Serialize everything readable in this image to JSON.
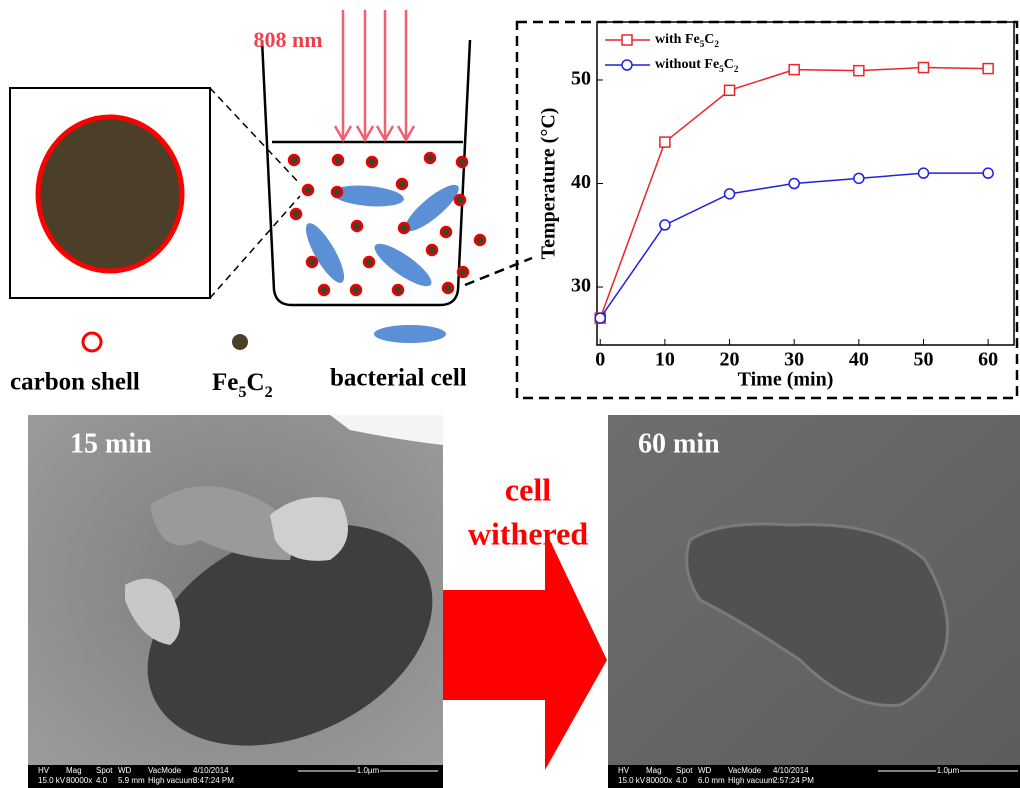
{
  "chart_data": {
    "type": "line",
    "xlabel": "Time (min)",
    "ylabel": "Temperature (°C)",
    "x": [
      0,
      10,
      20,
      30,
      40,
      50,
      60
    ],
    "series": [
      {
        "name": "with Fe5C2",
        "color": "#e8262a",
        "marker": "square",
        "values": [
          27,
          44,
          49,
          51,
          50.9,
          51.2,
          51.1
        ]
      },
      {
        "name": "without Fe5C2",
        "color": "#2020e0",
        "marker": "circle",
        "values": [
          27,
          36,
          39,
          40,
          40.5,
          41,
          41
        ]
      }
    ],
    "xlim": [
      -0.5,
      64
    ],
    "ylim": [
      24.4,
      55.6
    ],
    "xticks": [
      0,
      10,
      20,
      30,
      40,
      50,
      60
    ],
    "yticks": [
      30,
      40,
      50
    ],
    "legend": "upper left"
  },
  "diagram": {
    "laser": "808 nm",
    "legend": [
      "carbon shell",
      "Fe5C2",
      "bacterial cell"
    ]
  },
  "arrow_label": [
    "cell",
    "withered"
  ],
  "sem": [
    {
      "label": "15 min",
      "headers": [
        "HV",
        "Mag",
        "Spot",
        "WD",
        "VacMode",
        "4/10/2014"
      ],
      "values": [
        "15.0 kV",
        "80000x",
        "4.0",
        "5.9 mm",
        "High vacuum",
        "3:47:24 PM"
      ],
      "scale": "1.0µm"
    },
    {
      "label": "60 min",
      "headers": [
        "HV",
        "Mag",
        "Spot",
        "WD",
        "VacMode",
        "4/10/2014"
      ],
      "values": [
        "15.0 kV",
        "80000x",
        "4.0",
        "6.0 mm",
        "High vacuum",
        "2:57:24 PM"
      ],
      "scale": "1.0µm"
    }
  ]
}
